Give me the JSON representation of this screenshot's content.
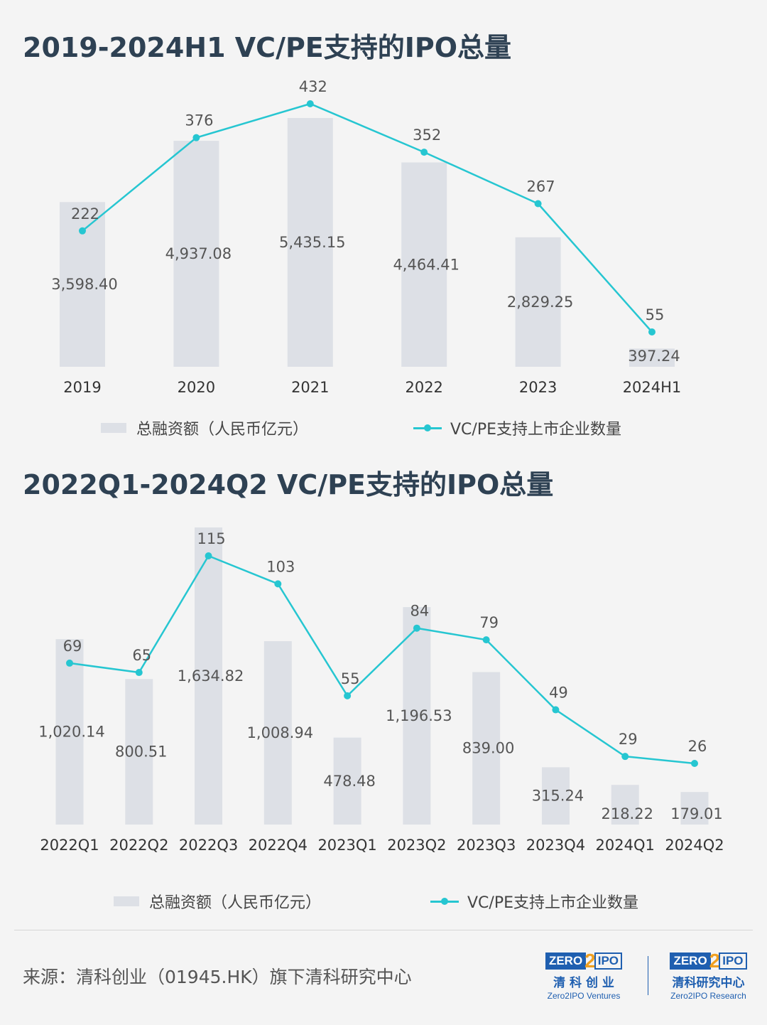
{
  "chart_data": [
    {
      "type": "bar",
      "title": "2019-2024H1 VC/PE支持的IPO总量",
      "categories": [
        "2019",
        "2020",
        "2021",
        "2022",
        "2023",
        "2024H1"
      ],
      "series": [
        {
          "name": "总融资额（人民币亿元）",
          "type": "bar",
          "values": [
            3598.4,
            4937.08,
            5435.15,
            4464.41,
            2829.25,
            397.24
          ],
          "labels": [
            "3,598.40",
            "4,937.08",
            "5,435.15",
            "4,464.41",
            "2,829.25",
            "397.24"
          ]
        },
        {
          "name": "VC/PE支持上市企业数量",
          "type": "line",
          "values": [
            222,
            376,
            432,
            352,
            267,
            55
          ]
        }
      ],
      "colors": {
        "bar": "#dde0e6",
        "line": "#26c6d1"
      },
      "legend_position": "bottom"
    },
    {
      "type": "bar",
      "title": "2022Q1-2024Q2 VC/PE支持的IPO总量",
      "categories": [
        "2022Q1",
        "2022Q2",
        "2022Q3",
        "2022Q4",
        "2023Q1",
        "2023Q2",
        "2023Q3",
        "2023Q4",
        "2024Q1",
        "2024Q2"
      ],
      "series": [
        {
          "name": "总融资额（人民币亿元）",
          "type": "bar",
          "values": [
            1020.14,
            800.51,
            1634.82,
            1008.94,
            478.48,
            1196.53,
            839.0,
            315.24,
            218.22,
            179.01
          ],
          "labels": [
            "1,020.14",
            "800.51",
            "1,634.82",
            "1,008.94",
            "478.48",
            "1,196.53",
            "839.00",
            "315.24",
            "218.22",
            "179.01"
          ]
        },
        {
          "name": "VC/PE支持上市企业数量",
          "type": "line",
          "values": [
            69,
            65,
            115,
            103,
            55,
            84,
            79,
            49,
            29,
            26
          ]
        }
      ],
      "colors": {
        "bar": "#dde0e6",
        "line": "#26c6d1"
      },
      "legend_position": "bottom"
    }
  ],
  "source": "来源：清科创业（01945.HK）旗下清科研究中心",
  "logos": [
    {
      "left": "ZERO",
      "mid": "2",
      "right": "IPO",
      "cn": "清 科 创 业",
      "en": "Zero2IPO Ventures"
    },
    {
      "left": "ZERO",
      "mid": "2",
      "right": "IPO",
      "cn": "清科研究中心",
      "en": "Zero2IPO Research"
    }
  ]
}
